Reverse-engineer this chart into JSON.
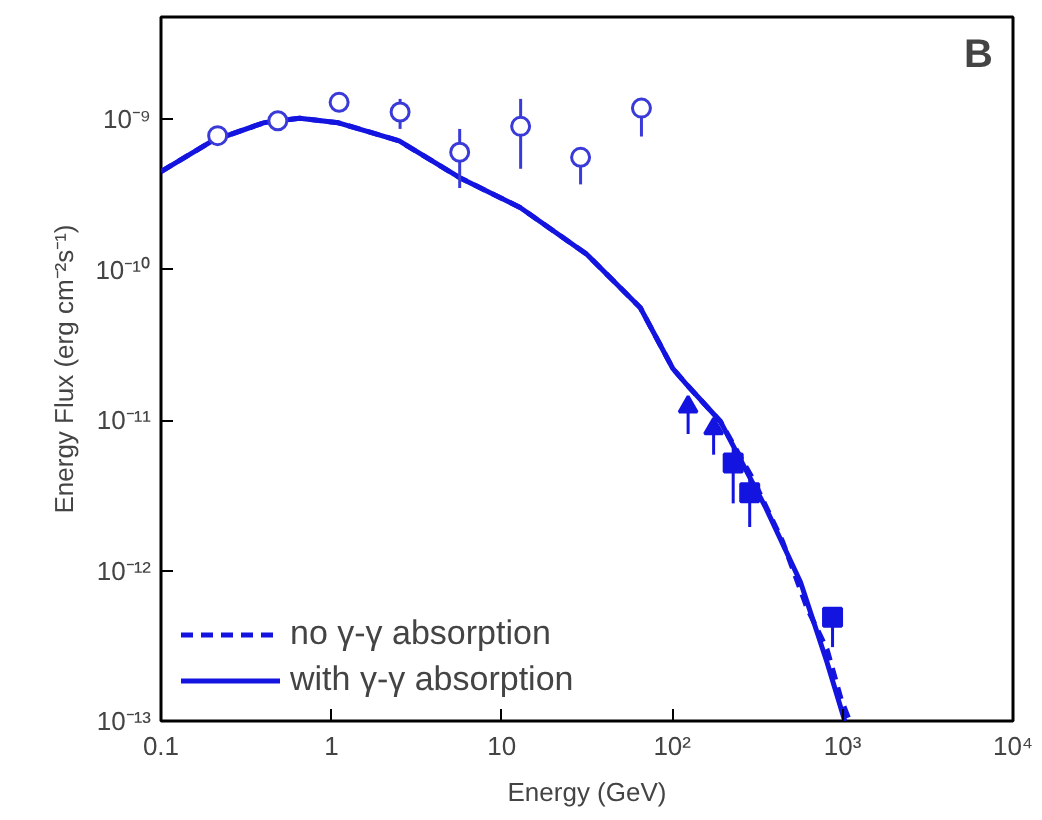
{
  "chart_data": {
    "type": "scatter",
    "xlabel": "Energy (GeV)",
    "ylabel": "Energy Flux (erg cm⁻²s⁻¹)",
    "log": "xy",
    "grid": false,
    "legend": "bottom",
    "xlim": [
      0.1,
      10000
    ],
    "ylim": [
      1e-13,
      4.8e-09
    ],
    "xticks": [
      0.1,
      1,
      10,
      {
        "value": 100,
        "label": "10²"
      },
      {
        "value": 1000,
        "label": "10³"
      },
      {
        "value": 10000,
        "label": "10⁴"
      }
    ],
    "yticks": [
      {
        "value": 1e-13,
        "label": "10⁻¹³"
      },
      {
        "value": 1e-12,
        "label": "10⁻¹²"
      },
      {
        "value": 1e-11,
        "label": "10⁻¹¹"
      },
      {
        "value": 1e-10,
        "label": "10⁻¹⁰"
      },
      {
        "value": 1e-09,
        "label": "10⁻⁹"
      }
    ],
    "annotations": [
      "B"
    ],
    "series": [
      {
        "name": "no γ-γ absorption",
        "type": "line",
        "line_style": "dashed",
        "color": "#1414e0",
        "x": [
          0.1,
          0.2,
          0.4,
          0.65,
          1.1,
          2.5,
          5.66,
          12.8,
          31.5,
          65,
          101,
          122,
          192,
          300,
          446,
          620,
          810,
          980,
          1100
        ],
        "values": [
          4.5e-10,
          7.2e-10,
          9.5e-10,
          1.02e-09,
          9.5e-10,
          7.2e-10,
          4.1e-10,
          2.6e-10,
          1.27e-10,
          5.6e-11,
          2.2e-11,
          1.72e-11,
          9.8e-12,
          4e-12,
          1.55e-12,
          5.6e-13,
          3e-13,
          1.4e-13,
          1e-13
        ]
      },
      {
        "name": "with γ-γ absorption",
        "type": "line",
        "line_style": "solid",
        "color": "#1414e0",
        "x": [
          0.1,
          0.2,
          0.4,
          0.65,
          1.1,
          2.5,
          5.66,
          12.8,
          31.5,
          65,
          101,
          122,
          192,
          355,
          566,
          810,
          1030
        ],
        "values": [
          4.5e-10,
          7.2e-10,
          9.5e-10,
          1.02e-09,
          9.5e-10,
          7.2e-10,
          4.1e-10,
          2.6e-10,
          1.27e-10,
          5.6e-11,
          2.2e-11,
          1.72e-11,
          9.8e-12,
          2.6e-12,
          8.4e-13,
          2.46e-13,
          1e-13
        ]
      },
      {
        "type": "scatter",
        "marker": "circle",
        "color": "#3a3ad8",
        "x": [
          0.215,
          0.485,
          1.11,
          2.53,
          5.66,
          12.9,
          29,
          66
        ],
        "values": [
          7.8e-10,
          9.8e-10,
          1.3e-09,
          1.12e-09,
          6.05e-10,
          9e-10,
          5.6e-10,
          1.19e-09
        ],
        "errors": [
          null,
          null,
          null,
          [
            8.65e-10,
            1.37e-09
          ],
          [
            3.5e-10,
            8.65e-10
          ],
          [
            4.7e-10,
            1.37e-09
          ],
          [
            3.7e-10,
            5.6e-10
          ],
          [
            7.7e-10,
            1.19e-09
          ]
        ]
      },
      {
        "type": "scatter",
        "marker": "triangle",
        "color": "#1414e0",
        "x": [
          124,
          175
        ],
        "values": [
          1.23e-11,
          8.8e-12
        ],
        "errors": [
          [
            8.1e-12,
            1.4e-11
          ],
          [
            5.9e-12,
            9.8e-12
          ]
        ]
      },
      {
        "type": "scatter",
        "marker": "square",
        "color": "#1414e0",
        "x": [
          228,
          285,
          873
        ],
        "values": [
          5.2e-12,
          3.3e-12,
          4.9e-13
        ],
        "errors": [
          [
            2.8e-12,
            6.5e-12
          ],
          [
            1.95e-12,
            4.1e-12
          ],
          [
            3.1e-13,
            4.9e-13
          ]
        ]
      }
    ]
  }
}
